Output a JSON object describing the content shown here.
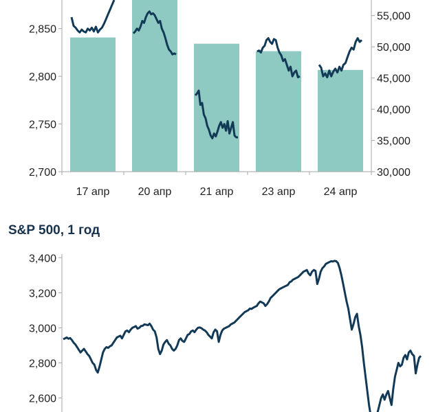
{
  "chart_data": [
    {
      "type": "bar+line",
      "title": "",
      "categories": [
        "17 апр",
        "20 апр",
        "21 апр",
        "23 апр",
        "24 апр"
      ],
      "y_left": {
        "lim": [
          2700,
          2880
        ],
        "ticks": [
          "2,700",
          "2,750",
          "2,800",
          "2,850"
        ],
        "tick_values": [
          2700,
          2750,
          2800,
          2850
        ]
      },
      "y_right": {
        "lim": [
          30000,
          57500
        ],
        "ticks": [
          "30,000",
          "35,000",
          "40,000",
          "45,000",
          "50,000",
          "55,000"
        ],
        "tick_values": [
          30000,
          35000,
          40000,
          45000,
          50000,
          55000
        ]
      },
      "grid": false,
      "series": [
        {
          "kind": "bar",
          "axis": "right",
          "color": "#8ec9c2",
          "values": [
            51500,
            60000,
            50500,
            49300,
            46300
          ]
        },
        {
          "kind": "line",
          "axis": "left",
          "color": "#123a57",
          "segments": [
            [
              2862,
              2853,
              2851,
              2848,
              2846,
              2849,
              2847,
              2846,
              2850,
              2848,
              2851,
              2847,
              2852,
              2846,
              2849,
              2851,
              2855,
              2860,
              2865,
              2870,
              2875,
              2880
            ],
            [
              2845,
              2847,
              2850,
              2848,
              2852,
              2858,
              2856,
              2862,
              2866,
              2868,
              2865,
              2866,
              2864,
              2860,
              2856,
              2858,
              2850,
              2846,
              2840,
              2833,
              2828,
              2826,
              2823,
              2824,
              2823
            ],
            [
              2780,
              2782,
              2785,
              2770,
              2772,
              2760,
              2756,
              2748,
              2744,
              2738,
              2735,
              2740,
              2737,
              2742,
              2748,
              2752,
              2746,
              2750,
              2743,
              2753,
              2740,
              2746,
              2752,
              2738,
              2736,
              2736
            ],
            [
              2826,
              2827,
              2825,
              2830,
              2832,
              2838,
              2840,
              2836,
              2834,
              2839,
              2838,
              2830,
              2825,
              2822,
              2816,
              2818,
              2812,
              2806,
              2810,
              2800,
              2804,
              2806,
              2799,
              2800
            ],
            [
              2812,
              2809,
              2800,
              2803,
              2799,
              2806,
              2800,
              2805,
              2808,
              2804,
              2810,
              2806,
              2812,
              2814,
              2820,
              2826,
              2830,
              2828,
              2836,
              2840,
              2836,
              2838
            ]
          ]
        }
      ]
    },
    {
      "type": "line",
      "title": "S&P 500, 1 год",
      "y": {
        "lim": [
          2520,
          3460
        ],
        "ticks": [
          "2,600",
          "2,800",
          "3,000",
          "3,200",
          "3,400"
        ],
        "tick_values": [
          2600,
          2800,
          3000,
          3200,
          3400
        ]
      },
      "grid": false,
      "color": "#123a57",
      "series": [
        {
          "name": "",
          "values": [
            2935,
            2940,
            2945,
            2938,
            2942,
            2930,
            2915,
            2905,
            2890,
            2875,
            2860,
            2870,
            2880,
            2865,
            2850,
            2840,
            2820,
            2800,
            2790,
            2760,
            2745,
            2780,
            2820,
            2860,
            2880,
            2890,
            2886,
            2895,
            2900,
            2915,
            2930,
            2945,
            2950,
            2955,
            2940,
            2960,
            2980,
            2985,
            2975,
            2990,
            3000,
            3005,
            3010,
            2995,
            3000,
            3010,
            3012,
            3020,
            3018,
            3015,
            3024,
            3010,
            2990,
            2980,
            2945,
            2880,
            2850,
            2870,
            2905,
            2920,
            2930,
            2910,
            2900,
            2880,
            2870,
            2880,
            2900,
            2930,
            2940,
            2925,
            2920,
            2940,
            2960,
            2965,
            2980,
            2985,
            2975,
            2990,
            3000,
            3002,
            2998,
            2990,
            2985,
            2975,
            2960,
            2950,
            2940,
            2975,
            2990,
            2980,
            2920,
            2960,
            2985,
            2995,
            3000,
            3005,
            3010,
            3020,
            3025,
            3030,
            3040,
            3050,
            3060,
            3070,
            3080,
            3090,
            3095,
            3100,
            3110,
            3108,
            3115,
            3120,
            3125,
            3140,
            3150,
            3145,
            3140,
            3125,
            3135,
            3150,
            3170,
            3180,
            3190,
            3200,
            3210,
            3220,
            3225,
            3230,
            3235,
            3240,
            3245,
            3260,
            3265,
            3275,
            3280,
            3285,
            3290,
            3300,
            3310,
            3320,
            3325,
            3330,
            3310,
            3300,
            3320,
            3330,
            3325,
            3250,
            3280,
            3320,
            3340,
            3350,
            3365,
            3370,
            3375,
            3380,
            3378,
            3382,
            3380,
            3370,
            3340,
            3300,
            3250,
            3200,
            3150,
            3110,
            3050,
            2990,
            3020,
            3060,
            3080,
            3010,
            2960,
            2890,
            2800,
            2720,
            2640,
            2560,
            2480,
            2420,
            2400,
            2450,
            2520,
            2560,
            2600,
            2620,
            2590,
            2620,
            2640,
            2600,
            2560,
            2650,
            2720,
            2760,
            2800,
            2780,
            2790,
            2830,
            2845,
            2820,
            2860,
            2870,
            2850,
            2840,
            2740,
            2790,
            2830,
            2840
          ]
        }
      ]
    }
  ]
}
